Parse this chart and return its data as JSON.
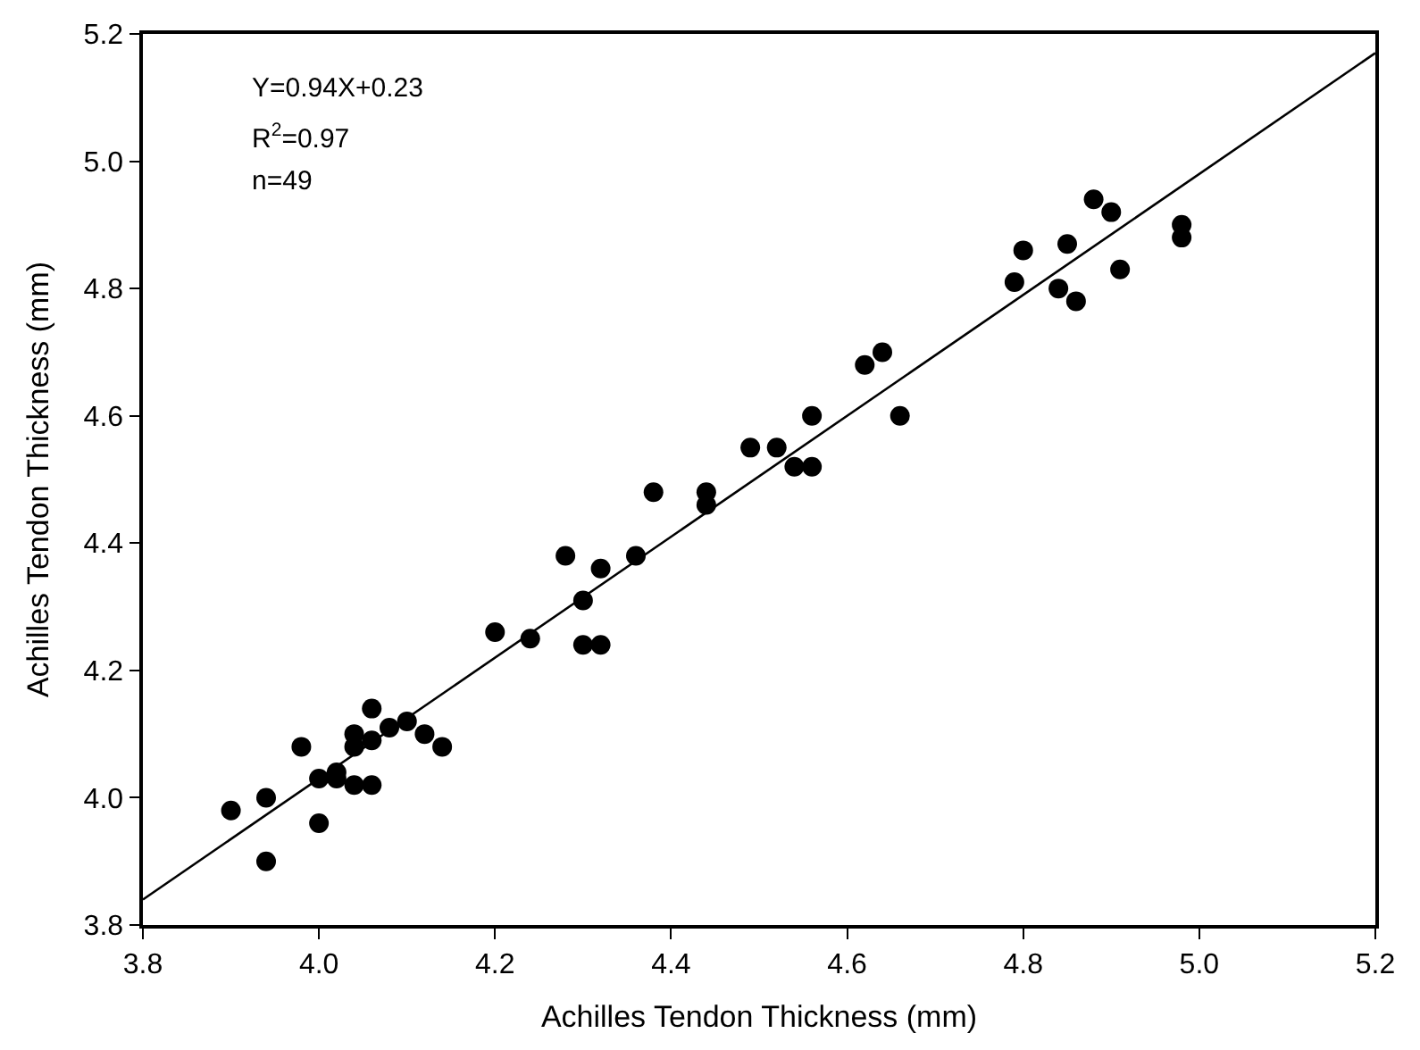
{
  "chart_data": {
    "type": "scatter",
    "xlabel": "Achilles Tendon Thickness (mm)",
    "ylabel": "Achilles Tendon Thickness (mm)",
    "xlim": [
      3.8,
      5.2
    ],
    "ylim": [
      3.8,
      5.2
    ],
    "xticks": [
      3.8,
      {
        "value": 4,
        "label": "4.0"
      },
      4.2,
      4.4,
      4.6,
      4.8,
      {
        "value": 5,
        "label": "5.0"
      },
      5.2
    ],
    "yticks": [
      3.8,
      {
        "value": 4,
        "label": "4.0"
      },
      4.2,
      4.4,
      4.6,
      4.8,
      {
        "value": 5,
        "label": "5.0"
      },
      5.2
    ],
    "grid": false,
    "marker": "circle",
    "annotations": [
      "Y=0.94X+0.23",
      "R$^{2}$=0.97",
      "n=49"
    ],
    "series": [
      {
        "color": "#000000",
        "x": [
          3.9,
          3.94,
          3.94,
          3.98,
          4.0,
          4.0,
          4.02,
          4.02,
          4.04,
          4.04,
          4.04,
          4.06,
          4.06,
          4.06,
          4.08,
          4.1,
          4.12,
          4.14,
          4.2,
          4.24,
          4.28,
          4.3,
          4.3,
          4.32,
          4.32,
          4.36,
          4.38,
          4.44,
          4.44,
          4.49,
          4.52,
          4.54,
          4.56,
          4.56,
          4.62,
          4.64,
          4.66,
          4.79,
          4.8,
          4.84,
          4.85,
          4.86,
          4.88,
          4.9,
          4.91,
          4.98,
          4.98
        ],
        "values": [
          3.98,
          4.0,
          3.9,
          4.08,
          4.03,
          3.96,
          4.04,
          4.03,
          4.1,
          4.08,
          4.02,
          4.14,
          4.09,
          4.02,
          4.11,
          4.12,
          4.1,
          4.08,
          4.26,
          4.25,
          4.38,
          4.31,
          4.24,
          4.36,
          4.24,
          4.38,
          4.48,
          4.48,
          4.46,
          4.55,
          4.55,
          4.52,
          4.52,
          4.6,
          4.68,
          4.7,
          4.6,
          4.81,
          4.86,
          4.8,
          4.87,
          4.78,
          4.94,
          4.92,
          4.83,
          4.9,
          4.88
        ]
      },
      {
        "type": "line",
        "color": "#000000",
        "marker": "none",
        "line_style": "solid",
        "x": [
          3.8,
          5.2
        ],
        "values": [
          3.84,
          5.17
        ]
      }
    ]
  }
}
